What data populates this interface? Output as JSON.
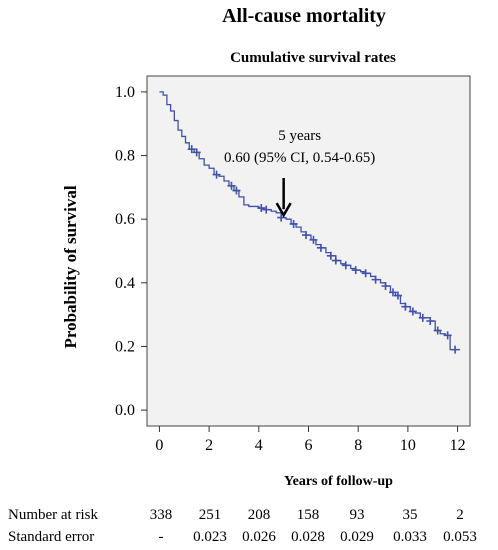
{
  "chart_data": {
    "type": "line",
    "title": "All-cause mortality",
    "subtitle": "Cumulative survival rates",
    "xlabel": "Years of follow-up",
    "ylabel": "Probability of survival",
    "xlim": [
      -0.5,
      12.5
    ],
    "ylim": [
      -0.05,
      1.05
    ],
    "x_ticks": [
      0,
      2,
      4,
      6,
      8,
      10,
      12
    ],
    "y_ticks": [
      0.0,
      0.2,
      0.4,
      0.6,
      0.8,
      1.0
    ],
    "y_tick_labels": [
      "0.0",
      "0.2",
      "0.4",
      "0.6",
      "0.8",
      "1.0"
    ],
    "x_tick_labels": [
      "0",
      "2",
      "4",
      "6",
      "8",
      "10",
      "12"
    ],
    "grid": false,
    "line_color": "#3f51a8",
    "plot_background": "#f2f2f2",
    "series": [
      {
        "x": [
          0,
          0.15,
          0.3,
          0.45,
          0.6,
          0.75,
          0.9,
          1.05,
          1.2,
          1.4,
          1.6,
          1.8,
          2.0,
          2.2,
          2.4,
          2.6,
          2.8,
          3.0,
          3.2,
          3.4,
          3.6,
          3.8,
          4.0,
          4.2,
          4.5,
          4.7,
          4.9,
          5.1,
          5.3,
          5.5,
          5.7,
          5.9,
          6.1,
          6.3,
          6.5,
          6.7,
          6.9,
          7.1,
          7.3,
          7.5,
          7.7,
          7.9,
          8.1,
          8.3,
          8.5,
          8.7,
          8.9,
          9.1,
          9.3,
          9.5,
          9.7,
          9.9,
          10.1,
          10.3,
          10.5,
          10.7,
          10.9,
          11.1,
          11.3,
          11.5,
          11.7,
          11.9,
          12.1
        ],
        "y": [
          1.0,
          0.99,
          0.96,
          0.94,
          0.91,
          0.88,
          0.86,
          0.84,
          0.82,
          0.81,
          0.79,
          0.77,
          0.76,
          0.74,
          0.735,
          0.72,
          0.705,
          0.69,
          0.67,
          0.645,
          0.64,
          0.64,
          0.635,
          0.63,
          0.625,
          0.62,
          0.605,
          0.6,
          0.585,
          0.575,
          0.56,
          0.55,
          0.535,
          0.52,
          0.51,
          0.495,
          0.485,
          0.47,
          0.46,
          0.455,
          0.445,
          0.44,
          0.435,
          0.43,
          0.42,
          0.41,
          0.4,
          0.39,
          0.37,
          0.36,
          0.335,
          0.325,
          0.31,
          0.305,
          0.29,
          0.29,
          0.28,
          0.25,
          0.24,
          0.235,
          0.19,
          0.19,
          0.19
        ]
      }
    ],
    "censor_x": [
      1.3,
      1.5,
      2.3,
      2.9,
      3.1,
      4.1,
      4.3,
      4.9,
      5.4,
      5.9,
      6.2,
      6.5,
      6.9,
      7.1,
      7.5,
      7.9,
      8.3,
      8.7,
      9.1,
      9.4,
      9.6,
      9.9,
      10.2,
      10.6,
      10.9,
      11.2,
      11.6,
      11.9
    ],
    "annotation": {
      "line1": "5 years",
      "line2": "0.60 (95% CI, 0.54-0.65)",
      "arrow_x": 5.0,
      "arrow_y": 0.6
    },
    "risk_table": {
      "rows": [
        {
          "label": "Number at risk",
          "values": [
            "338",
            "251",
            "208",
            "158",
            "93",
            "35",
            "2"
          ]
        },
        {
          "label": "Standard error",
          "values": [
            "-",
            "0.023",
            "0.026",
            "0.028",
            "0.029",
            "0.033",
            "0.053"
          ]
        }
      ]
    }
  }
}
